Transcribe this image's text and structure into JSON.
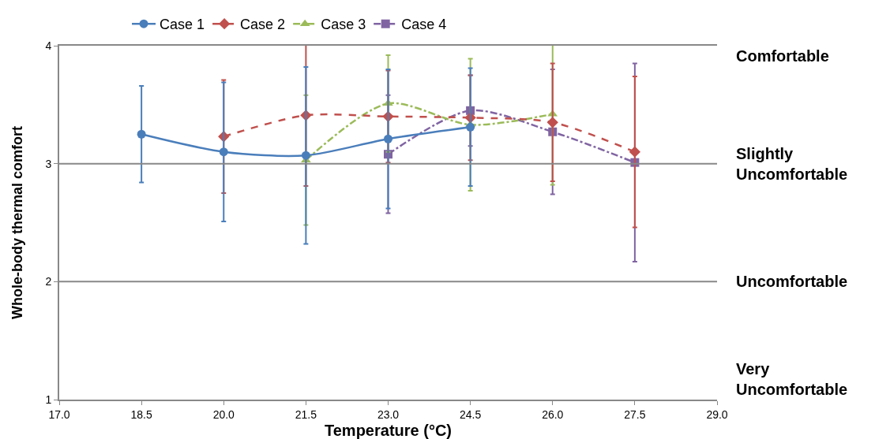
{
  "chart_data": {
    "type": "line",
    "xlabel": "Temperature (°C)",
    "ylabel": "Whole-body thermal comfort",
    "xlim": [
      17,
      29
    ],
    "xticks": [
      {
        "value": 17,
        "label": "17.0"
      },
      {
        "value": 18.5,
        "label": "18.5"
      },
      {
        "value": 20,
        "label": "20.0"
      },
      {
        "value": 21.5,
        "label": "21.5"
      },
      {
        "value": 23,
        "label": "23.0"
      },
      {
        "value": 24.5,
        "label": "24.5"
      },
      {
        "value": 26,
        "label": "26.0"
      },
      {
        "value": 27.5,
        "label": "27.5"
      },
      {
        "value": 29,
        "label": "29.0"
      }
    ],
    "ylim": [
      1,
      4
    ],
    "yticks": [
      1,
      2,
      3,
      4
    ],
    "ref_lines": [
      {
        "axis": "y",
        "value": 2,
        "label": "Uncomfortable",
        "color": "#888888"
      },
      {
        "axis": "y",
        "value": 3,
        "label": "Slightly Uncomfortable",
        "color": "#888888"
      }
    ],
    "annotations": [
      "Very Uncomfortable",
      "Comfortable"
    ],
    "x": [
      18.5,
      20,
      21.5,
      23,
      24.5,
      26,
      27.5
    ],
    "legend": "top",
    "series": [
      {
        "name": "Case 1",
        "color": "#4a7ebb",
        "marker": "circle",
        "line_style": "solid",
        "values": [
          3.25,
          3.1,
          3.07,
          3.21,
          3.31,
          null,
          null
        ],
        "errors": [
          0.41,
          0.59,
          0.75,
          0.59,
          0.5,
          null,
          null
        ]
      },
      {
        "name": "Case 2",
        "color": "#c0504d",
        "marker": "diamond",
        "line_style": "dashed",
        "values": [
          null,
          3.23,
          3.41,
          3.4,
          3.39,
          3.35,
          3.1
        ],
        "errors": [
          null,
          0.48,
          0.6,
          0.39,
          0.36,
          0.5,
          0.64
        ]
      },
      {
        "name": "Case 3",
        "color": "#9bbb59",
        "marker": "triangle",
        "line_style": "dashdot",
        "values": [
          null,
          null,
          3.03,
          3.51,
          3.33,
          3.42,
          null
        ],
        "errors": [
          null,
          null,
          0.55,
          0.41,
          0.56,
          0.6,
          null
        ]
      },
      {
        "name": "Case 4",
        "color": "#8064a2",
        "marker": "square",
        "line_style": "dashdot",
        "values": [
          null,
          null,
          null,
          3.08,
          3.45,
          3.27,
          3.01
        ],
        "errors": [
          null,
          null,
          null,
          0.5,
          0.3,
          0.53,
          0.84
        ]
      }
    ]
  }
}
